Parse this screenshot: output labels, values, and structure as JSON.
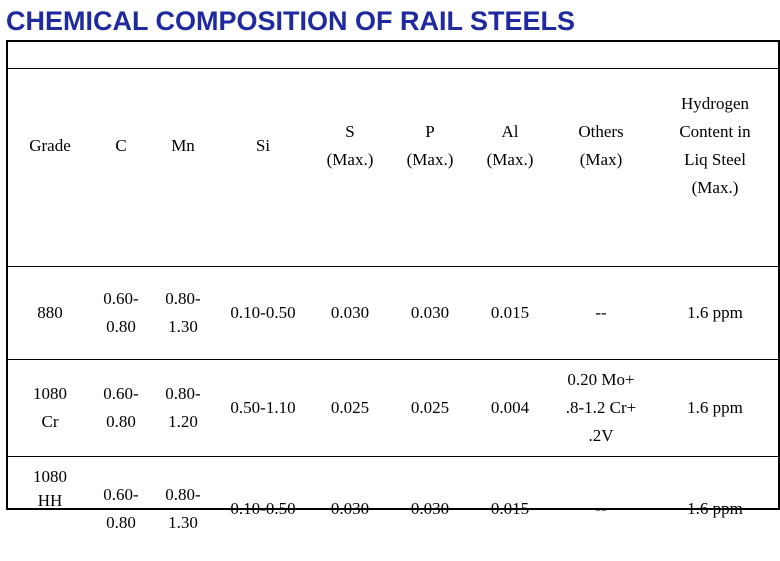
{
  "title": "CHEMICAL COMPOSITION OF RAIL STEELS",
  "columns": [
    "Grade",
    "C",
    "Mn",
    "Si",
    "S (Max.)",
    "P (Max.)",
    "Al (Max.)",
    "Others (Max)",
    "Hydrogen Content in Liq Steel (Max.)"
  ],
  "header": {
    "grade": "Grade",
    "c": "C",
    "mn": "Mn",
    "si": "Si",
    "s": [
      "S",
      "(Max.)"
    ],
    "p": [
      "P",
      "(Max.)"
    ],
    "al": [
      "Al",
      "(Max.)"
    ],
    "others": [
      "Others",
      "(Max)"
    ],
    "hydrogen": [
      "Hydrogen",
      "Content in",
      "Liq Steel",
      "(Max.)"
    ]
  },
  "rows": [
    {
      "grade": [
        "880"
      ],
      "c": [
        "0.60-",
        "0.80"
      ],
      "mn": [
        "0.80-",
        "1.30"
      ],
      "si": "0.10-0.50",
      "s": "0.030",
      "p": "0.030",
      "al": "0.015",
      "others": [
        "--"
      ],
      "hydrogen": "1.6 ppm"
    },
    {
      "grade": [
        "1080",
        "Cr"
      ],
      "c": [
        "0.60-",
        "0.80"
      ],
      "mn": [
        "0.80-",
        "1.20"
      ],
      "si": "0.50-1.10",
      "s": "0.025",
      "p": "0.025",
      "al": "0.004",
      "others": [
        "0.20 Mo+",
        ".8-1.2 Cr+",
        ".2V"
      ],
      "hydrogen": "1.6 ppm"
    },
    {
      "grade": [
        "1080",
        "HH"
      ],
      "c": [
        "0.60-",
        "0.80"
      ],
      "mn": [
        "0.80-",
        "1.30"
      ],
      "si": "0.10-0.50",
      "s": "0.030",
      "p": "0.030",
      "al": "0.015",
      "others": [
        "--"
      ],
      "hydrogen": "1.6 ppm"
    }
  ],
  "colors": {
    "title": "#1f2a9e",
    "text": "#000000",
    "background": "#ffffff"
  }
}
